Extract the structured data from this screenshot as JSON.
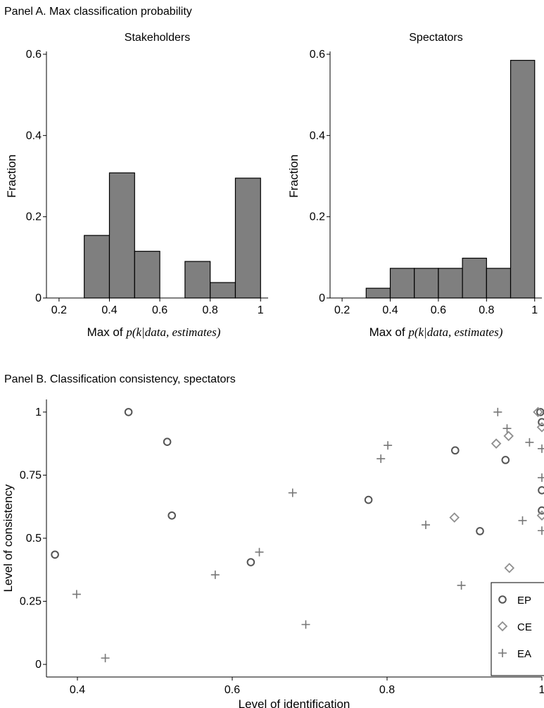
{
  "panel_a": {
    "title": "Panel A. Max classification probability"
  },
  "panel_b": {
    "title": "Panel B. Classification consistency, spectators"
  },
  "colors": {
    "bar_fill": "#7f7f7f",
    "bar_edge": "#000000",
    "ep": "#555555",
    "ce": "#8f8f8f",
    "ea": "#777777"
  },
  "chart_data": [
    {
      "id": "stakeholders",
      "type": "bar",
      "title": "Stakeholders",
      "xlabel_pre": "Max of ",
      "xlabel_math": "p(k|data, estimates)",
      "ylabel": "Fraction",
      "xlim": [
        0.15,
        1.03
      ],
      "ylim": [
        0,
        0.6
      ],
      "xticks": [
        {
          "v": 0.2,
          "label": "0.2"
        },
        {
          "v": 0.4,
          "label": "0.4"
        },
        {
          "v": 0.6,
          "label": "0.6"
        },
        {
          "v": 0.8,
          "label": "0.8"
        },
        {
          "v": 1,
          "label": "1"
        }
      ],
      "yticks": [
        {
          "v": 0,
          "label": "0"
        },
        {
          "v": 0.2,
          "label": "0.2"
        },
        {
          "v": 0.4,
          "label": "0.4"
        },
        {
          "v": 0.6,
          "label": "0.6"
        }
      ],
      "bins": [
        {
          "x0": 0.3,
          "x1": 0.4,
          "value": 0.154
        },
        {
          "x0": 0.4,
          "x1": 0.5,
          "value": 0.308
        },
        {
          "x0": 0.5,
          "x1": 0.6,
          "value": 0.115
        },
        {
          "x0": 0.6,
          "x1": 0.7,
          "value": 0
        },
        {
          "x0": 0.7,
          "x1": 0.8,
          "value": 0.09
        },
        {
          "x0": 0.8,
          "x1": 0.9,
          "value": 0.038
        },
        {
          "x0": 0.9,
          "x1": 1.0,
          "value": 0.295
        }
      ]
    },
    {
      "id": "spectators",
      "type": "bar",
      "title": "Spectators",
      "xlabel_pre": "Max of ",
      "xlabel_math": "p(k|data, estimates)",
      "ylabel": "Fraction",
      "xlim": [
        0.15,
        1.03
      ],
      "ylim": [
        0,
        0.6
      ],
      "xticks": [
        {
          "v": 0.2,
          "label": "0.2"
        },
        {
          "v": 0.4,
          "label": "0.4"
        },
        {
          "v": 0.6,
          "label": "0.6"
        },
        {
          "v": 0.8,
          "label": "0.8"
        },
        {
          "v": 1,
          "label": "1"
        }
      ],
      "yticks": [
        {
          "v": 0,
          "label": "0"
        },
        {
          "v": 0.2,
          "label": "0.2"
        },
        {
          "v": 0.4,
          "label": "0.4"
        },
        {
          "v": 0.6,
          "label": "0.6"
        }
      ],
      "bins": [
        {
          "x0": 0.3,
          "x1": 0.4,
          "value": 0.024
        },
        {
          "x0": 0.4,
          "x1": 0.5,
          "value": 0.073
        },
        {
          "x0": 0.5,
          "x1": 0.6,
          "value": 0.073
        },
        {
          "x0": 0.6,
          "x1": 0.7,
          "value": 0.073
        },
        {
          "x0": 0.7,
          "x1": 0.8,
          "value": 0.098
        },
        {
          "x0": 0.8,
          "x1": 0.9,
          "value": 0.073
        },
        {
          "x0": 0.9,
          "x1": 1.0,
          "value": 0.585
        }
      ]
    },
    {
      "id": "consistency",
      "type": "scatter",
      "xlabel": "Level of identification",
      "ylabel": "Level of consistency",
      "xlim": [
        0.36,
        1.0
      ],
      "ylim": [
        -0.05,
        1.05
      ],
      "xticks": [
        {
          "v": 0.4,
          "label": "0.4"
        },
        {
          "v": 0.6,
          "label": "0.6"
        },
        {
          "v": 0.8,
          "label": "0.8"
        },
        {
          "v": 1,
          "label": "1"
        }
      ],
      "yticks": [
        {
          "v": 0,
          "label": "0"
        },
        {
          "v": 0.25,
          "label": "0.25"
        },
        {
          "v": 0.5,
          "label": "0.5"
        },
        {
          "v": 0.75,
          "label": "0.75"
        },
        {
          "v": 1,
          "label": "1"
        }
      ],
      "legend_position": "bottom-right",
      "series": [
        {
          "name": "EP",
          "marker": "circle",
          "points": [
            [
              0.371,
              0.435
            ],
            [
              0.466,
              1.0
            ],
            [
              0.516,
              0.882
            ],
            [
              0.522,
              0.59
            ],
            [
              0.624,
              0.405
            ],
            [
              0.776,
              0.652
            ],
            [
              0.888,
              0.848
            ],
            [
              0.92,
              0.528
            ],
            [
              0.953,
              0.81
            ],
            [
              0.998,
              1.0
            ],
            [
              1.0,
              0.96
            ],
            [
              1.0,
              0.69
            ],
            [
              1.0,
              0.61
            ]
          ]
        },
        {
          "name": "CE",
          "marker": "diamond",
          "points": [
            [
              0.887,
              0.582
            ],
            [
              0.941,
              0.875
            ],
            [
              0.957,
              0.905
            ],
            [
              0.958,
              0.382
            ],
            [
              0.995,
              1.0
            ],
            [
              1.0,
              0.94
            ],
            [
              1.0,
              0.59
            ]
          ]
        },
        {
          "name": "EA",
          "marker": "plus",
          "points": [
            [
              0.399,
              0.278
            ],
            [
              0.436,
              0.025
            ],
            [
              0.578,
              0.355
            ],
            [
              0.635,
              0.445
            ],
            [
              0.678,
              0.68
            ],
            [
              0.695,
              0.158
            ],
            [
              0.792,
              0.815
            ],
            [
              0.801,
              0.868
            ],
            [
              0.85,
              0.553
            ],
            [
              0.896,
              0.313
            ],
            [
              0.943,
              1.0
            ],
            [
              0.955,
              0.935
            ],
            [
              0.975,
              0.57
            ],
            [
              0.984,
              0.88
            ],
            [
              1.0,
              0.855
            ],
            [
              1.0,
              0.74
            ],
            [
              1.0,
              0.53
            ]
          ]
        }
      ]
    }
  ]
}
